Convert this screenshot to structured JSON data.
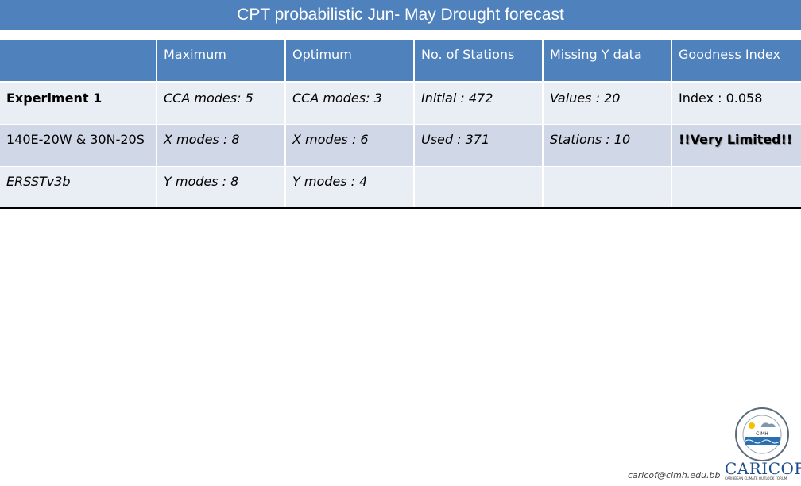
{
  "title": "CPT probabilistic Jun- May Drought forecast",
  "table": {
    "headers": [
      "",
      "Maximum",
      "Optimum",
      "No. of Stations",
      "Missing Y data",
      "Goodness Index"
    ],
    "rows": [
      [
        "Experiment 1",
        "CCA modes: 5",
        "CCA modes: 3",
        "Initial : 472",
        "Values : 20",
        "Index : 0.058"
      ],
      [
        "140E-20W & 30N-20S",
        "X modes : 8",
        "X modes : 6",
        "Used : 371",
        "Stations : 10",
        "!!Very Limited!!"
      ],
      [
        "ERSSTv3b",
        "Y modes : 8",
        "Y modes : 4",
        "",
        "",
        ""
      ]
    ]
  },
  "footer": {
    "email": "caricof@cimh.edu.bb",
    "logo_cimh_text": "CIMH",
    "logo_caricof_text": "CARICOF",
    "logo_caricof_sub": "CARIBBEAN CLIMATE OUTLOOK FORUM"
  },
  "colors": {
    "header_blue": "#4f81bd",
    "row_light": "#e9edf4",
    "row_dark": "#d0d8e8",
    "warning_red": "#e00000"
  }
}
